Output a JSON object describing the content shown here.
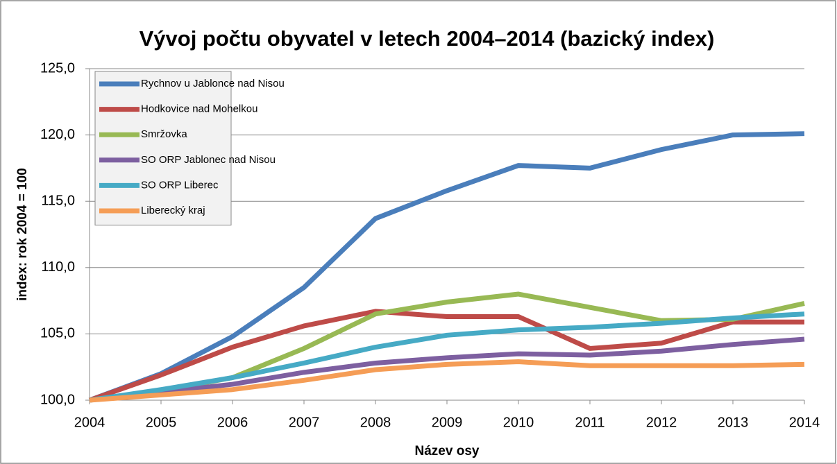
{
  "chart_data": {
    "type": "line",
    "title": "Vývoj počtu obyvatel v letech 2004–2014 (bazický index)",
    "x_label": "Název osy",
    "y_label": "index: rok 2004 = 100",
    "categories": [
      "2004",
      "2005",
      "2006",
      "2007",
      "2008",
      "2009",
      "2010",
      "2011",
      "2012",
      "2013",
      "2014"
    ],
    "series": [
      {
        "name": "Rychnov u Jablonce nad Nisou",
        "color": "#4a7ebb",
        "values": [
          100,
          102.0,
          104.8,
          108.5,
          113.7,
          115.8,
          117.7,
          117.5,
          118.9,
          120.0,
          120.1
        ]
      },
      {
        "name": "Hodkovice nad Mohelkou",
        "color": "#be4b48",
        "values": [
          100,
          101.9,
          104.0,
          105.6,
          106.7,
          106.3,
          106.3,
          103.9,
          104.3,
          105.9,
          105.9
        ]
      },
      {
        "name": "Smržovka",
        "color": "#98b954",
        "values": [
          100,
          100.7,
          101.7,
          103.9,
          106.5,
          107.4,
          108.0,
          107.0,
          106.0,
          106.1,
          107.3
        ]
      },
      {
        "name": "SO ORP Jablonec nad Nisou",
        "color": "#7d5fa0",
        "values": [
          100,
          100.6,
          101.2,
          102.1,
          102.8,
          103.2,
          103.5,
          103.4,
          103.7,
          104.2,
          104.6
        ]
      },
      {
        "name": "SO ORP Liberec",
        "color": "#46aac5",
        "values": [
          100,
          100.8,
          101.7,
          102.8,
          104.0,
          104.9,
          105.3,
          105.5,
          105.8,
          106.2,
          106.5
        ]
      },
      {
        "name": "Liberecký kraj",
        "color": "#f59d56",
        "values": [
          100,
          100.4,
          100.8,
          101.5,
          102.3,
          102.7,
          102.9,
          102.6,
          102.6,
          102.6,
          102.7
        ]
      }
    ],
    "ylim": [
      100,
      125
    ],
    "yticks": [
      {
        "value": 100,
        "label": "100,0"
      },
      {
        "value": 105,
        "label": "105,0"
      },
      {
        "value": 110,
        "label": "110,0"
      },
      {
        "value": 115,
        "label": "115,0"
      },
      {
        "value": 120,
        "label": "120,0"
      },
      {
        "value": 125,
        "label": "125,0"
      }
    ],
    "grid": true,
    "legend": "upper left"
  }
}
